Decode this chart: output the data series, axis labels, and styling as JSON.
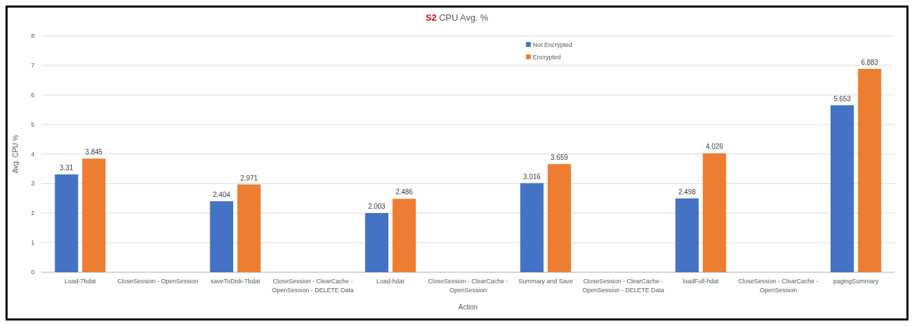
{
  "chart_data": {
    "type": "bar",
    "title": "S2 CPU Avg. %",
    "xlabel": "Action",
    "ylabel": "Avg. CPU %",
    "categories": [
      "Load-7bdat",
      "CloseSession - OpenSession",
      "saveToDisk-7bdat",
      "CloseSession - ClearCache - OpenSession - DELETE Data",
      "Load-hdat",
      "CloseSession - ClearCache - OpenSession",
      "Summary and Save",
      "CloseSession - ClearCache - OpenSession - DELETE Data",
      "loadFull-hdat",
      "CloseSession - ClearCache - OpenSession",
      "pagingSummary"
    ],
    "series": [
      {
        "name": "Not Encrypted",
        "color": "#4472c4",
        "values": [
          3.31,
          null,
          2.404,
          null,
          2.003,
          null,
          3.016,
          null,
          2.498,
          null,
          5.653
        ]
      },
      {
        "name": "Encrypted",
        "color": "#ed7d31",
        "values": [
          3.845,
          null,
          2.971,
          null,
          2.486,
          null,
          3.659,
          null,
          4.026,
          null,
          6.883
        ]
      }
    ],
    "ylim": [
      0,
      8
    ],
    "yticks": [
      0,
      1,
      2,
      3,
      4,
      5,
      6,
      7,
      8
    ],
    "grid": "y",
    "legend": "top",
    "data_labels": true
  }
}
